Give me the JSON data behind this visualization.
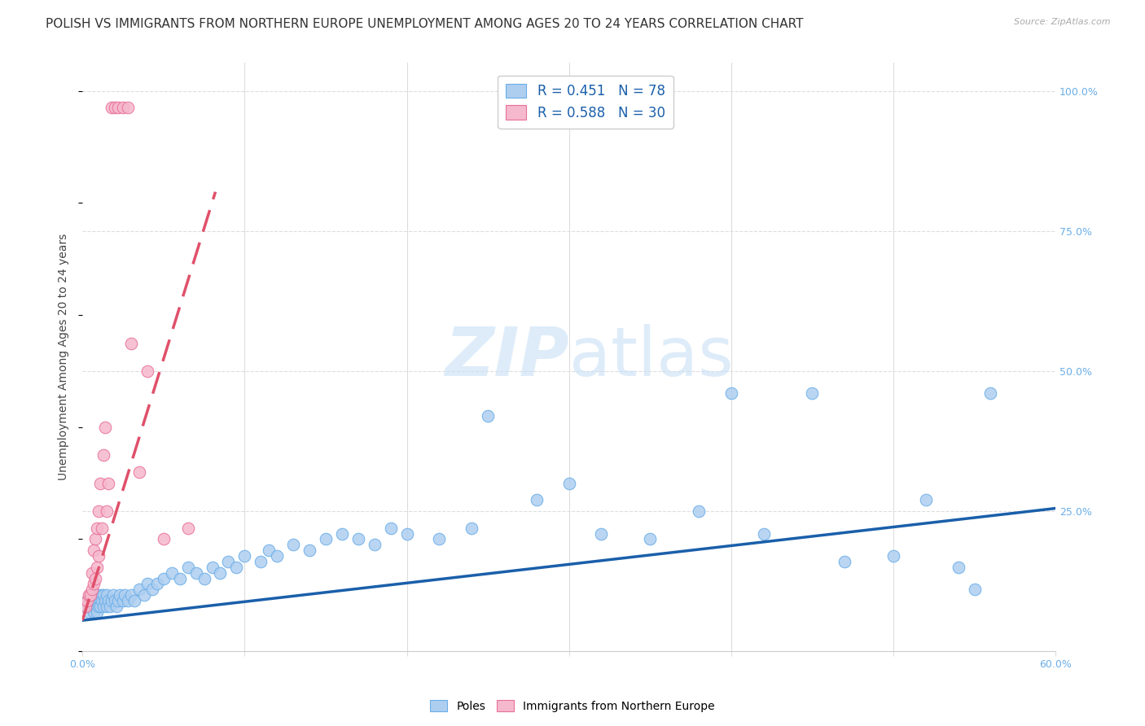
{
  "title": "POLISH VS IMMIGRANTS FROM NORTHERN EUROPE UNEMPLOYMENT AMONG AGES 20 TO 24 YEARS CORRELATION CHART",
  "source": "Source: ZipAtlas.com",
  "ylabel": "Unemployment Among Ages 20 to 24 years",
  "xlim": [
    0.0,
    0.6
  ],
  "ylim": [
    0.0,
    1.05
  ],
  "poles_color": "#aecef0",
  "poles_edge_color": "#6aaee8",
  "immigrants_color": "#f5b8cc",
  "immigrants_edge_color": "#e87098",
  "poles_line_color": "#1a5faa",
  "immigrants_line_color": "#e0506a",
  "poles_R": 0.451,
  "poles_N": 78,
  "immigrants_R": 0.588,
  "immigrants_N": 30,
  "watermark_zip": "ZIP",
  "watermark_atlas": "atlas",
  "background_color": "#ffffff",
  "grid_color": "#dddddd",
  "legend_text_color": "#1a5faa",
  "title_fontsize": 11,
  "axis_label_fontsize": 10,
  "tick_fontsize": 9,
  "poles_x": [
    0.002,
    0.003,
    0.004,
    0.005,
    0.006,
    0.007,
    0.008,
    0.008,
    0.009,
    0.009,
    0.01,
    0.01,
    0.011,
    0.011,
    0.012,
    0.012,
    0.013,
    0.013,
    0.014,
    0.015,
    0.015,
    0.016,
    0.017,
    0.018,
    0.019,
    0.02,
    0.021,
    0.022,
    0.023,
    0.025,
    0.026,
    0.028,
    0.03,
    0.032,
    0.035,
    0.038,
    0.04,
    0.043,
    0.046,
    0.05,
    0.055,
    0.06,
    0.065,
    0.07,
    0.075,
    0.08,
    0.085,
    0.09,
    0.095,
    0.1,
    0.11,
    0.115,
    0.12,
    0.13,
    0.14,
    0.15,
    0.16,
    0.17,
    0.18,
    0.19,
    0.2,
    0.22,
    0.24,
    0.25,
    0.28,
    0.3,
    0.32,
    0.35,
    0.38,
    0.4,
    0.42,
    0.45,
    0.47,
    0.5,
    0.52,
    0.54,
    0.55,
    0.56
  ],
  "poles_y": [
    0.08,
    0.09,
    0.07,
    0.08,
    0.09,
    0.07,
    0.08,
    0.09,
    0.07,
    0.09,
    0.08,
    0.1,
    0.09,
    0.08,
    0.1,
    0.09,
    0.08,
    0.1,
    0.09,
    0.08,
    0.1,
    0.09,
    0.08,
    0.09,
    0.1,
    0.09,
    0.08,
    0.09,
    0.1,
    0.09,
    0.1,
    0.09,
    0.1,
    0.09,
    0.11,
    0.1,
    0.12,
    0.11,
    0.12,
    0.13,
    0.14,
    0.13,
    0.15,
    0.14,
    0.13,
    0.15,
    0.14,
    0.16,
    0.15,
    0.17,
    0.16,
    0.18,
    0.17,
    0.19,
    0.18,
    0.2,
    0.21,
    0.2,
    0.19,
    0.22,
    0.21,
    0.2,
    0.22,
    0.42,
    0.27,
    0.3,
    0.21,
    0.2,
    0.25,
    0.46,
    0.21,
    0.46,
    0.16,
    0.17,
    0.27,
    0.15,
    0.11,
    0.46
  ],
  "immigrants_x": [
    0.002,
    0.003,
    0.004,
    0.005,
    0.006,
    0.006,
    0.007,
    0.007,
    0.008,
    0.008,
    0.009,
    0.009,
    0.01,
    0.01,
    0.011,
    0.012,
    0.013,
    0.014,
    0.015,
    0.016,
    0.018,
    0.02,
    0.022,
    0.025,
    0.028,
    0.03,
    0.035,
    0.04,
    0.05,
    0.065
  ],
  "immigrants_y": [
    0.08,
    0.09,
    0.1,
    0.1,
    0.11,
    0.14,
    0.12,
    0.18,
    0.13,
    0.2,
    0.15,
    0.22,
    0.17,
    0.25,
    0.3,
    0.22,
    0.35,
    0.4,
    0.25,
    0.3,
    0.97,
    0.97,
    0.97,
    0.97,
    0.97,
    0.55,
    0.32,
    0.5,
    0.2,
    0.22
  ],
  "poles_line_x": [
    0.0,
    0.6
  ],
  "poles_line_y": [
    0.055,
    0.255
  ],
  "immigrants_line_x": [
    0.0,
    0.082
  ],
  "immigrants_line_y": [
    0.055,
    0.82
  ]
}
